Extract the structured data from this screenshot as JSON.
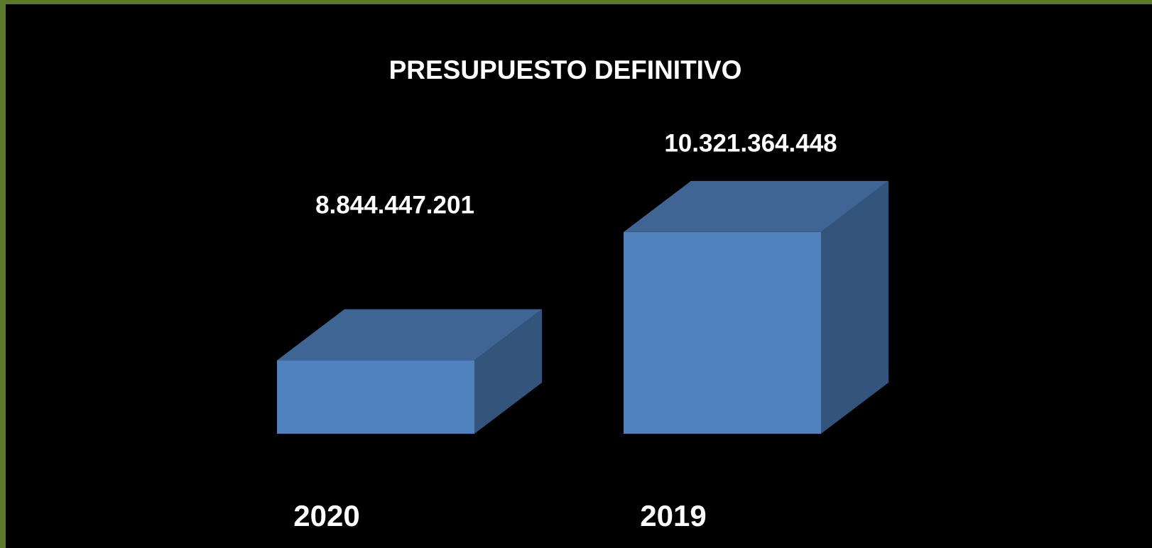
{
  "chart_data": {
    "type": "bar3d",
    "title": "PRESUPUESTO DEFINITIVO",
    "categories": [
      "2020",
      "2019"
    ],
    "values": [
      8844447201,
      10321364448
    ],
    "value_labels": [
      "8.844.447.201",
      "10.321.364.448"
    ],
    "color": "#4f81bd",
    "ylim": [
      8000000000,
      10500000000
    ]
  }
}
